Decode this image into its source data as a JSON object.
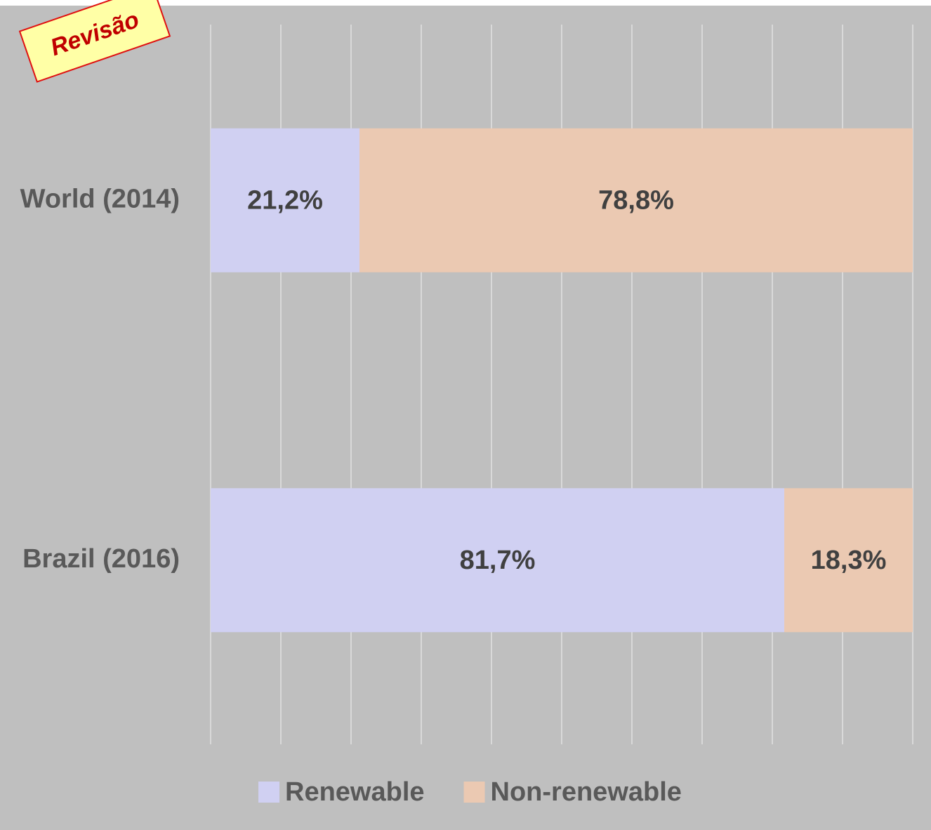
{
  "chart_data": {
    "type": "stacked_barh",
    "annotation": "Revisão",
    "categories": [
      "World (2014)",
      "Brazil (2016)"
    ],
    "series": [
      {
        "name": "Renewable",
        "color": "#d0d0f2",
        "values": [
          21.2,
          81.7
        ],
        "value_labels": [
          "21,2%",
          "81,7%"
        ]
      },
      {
        "name": "Non-renewable",
        "color": "#ebc9b2",
        "values": [
          78.8,
          18.3
        ],
        "value_labels": [
          "78,8%",
          "18,3%"
        ]
      }
    ],
    "xlim": [
      0,
      100
    ],
    "xticks": [
      0,
      10,
      20,
      30,
      40,
      50,
      60,
      70,
      80,
      90,
      100
    ],
    "grid": true,
    "legend": "bottom"
  }
}
